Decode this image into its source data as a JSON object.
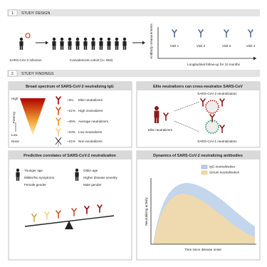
{
  "design": {
    "number": "1.",
    "title": "STUDY DESIGN",
    "infection": "SARS-CoV-2 infection",
    "cohort": "Convalescent cohort (n= 963)",
    "measurements": "Antibody measurements",
    "visits": [
      "Visit 1",
      "Visit 2",
      "Visit 3",
      "Visit 4"
    ],
    "followup": "Longitudinal follow-up for 10 months"
  },
  "findings": {
    "number": "2.",
    "title": "STUDY FINDINGS"
  },
  "spectrum": {
    "title": "Broad spectrum of SARS-CoV-2 neutralizing IgG",
    "high": "High",
    "potency": "Potency",
    "low": "Low",
    "none": "None",
    "rows": [
      {
        "percent": "~3%",
        "label": "Elite neutralizers"
      },
      {
        "percent": "~21%",
        "label": "High neutralizers"
      },
      {
        "percent": "~45%",
        "label": "Average neutralizers"
      },
      {
        "percent": "~10%",
        "label": "Low neutralizers"
      },
      {
        "percent": "~21%",
        "label": "Non-neutralizers"
      }
    ]
  },
  "cross": {
    "title": "Elite neutralizers can cross-neutralize SARS-CoV",
    "top": "SARS-CoV-2 neutralization",
    "person": "Elite neutralizers",
    "bottom": "SARS-CoV-1 neutralization"
  },
  "correlates": {
    "title": "Predictive correlates of SARS-CoV-2 neutralization",
    "left": [
      "Younger age",
      "Milder/No symptoms",
      "Female gender"
    ],
    "right": [
      "Older age",
      "Higher disease severity",
      "Male gender"
    ]
  },
  "dynamics": {
    "title": "Dynamics of SARS-CoV-2 neutralizing antibodies",
    "legend": [
      "IgG neutralization",
      "Serum neutralization"
    ],
    "ylabel": "Neutralizing activity",
    "xlabel": "Time since disease onset"
  }
}
